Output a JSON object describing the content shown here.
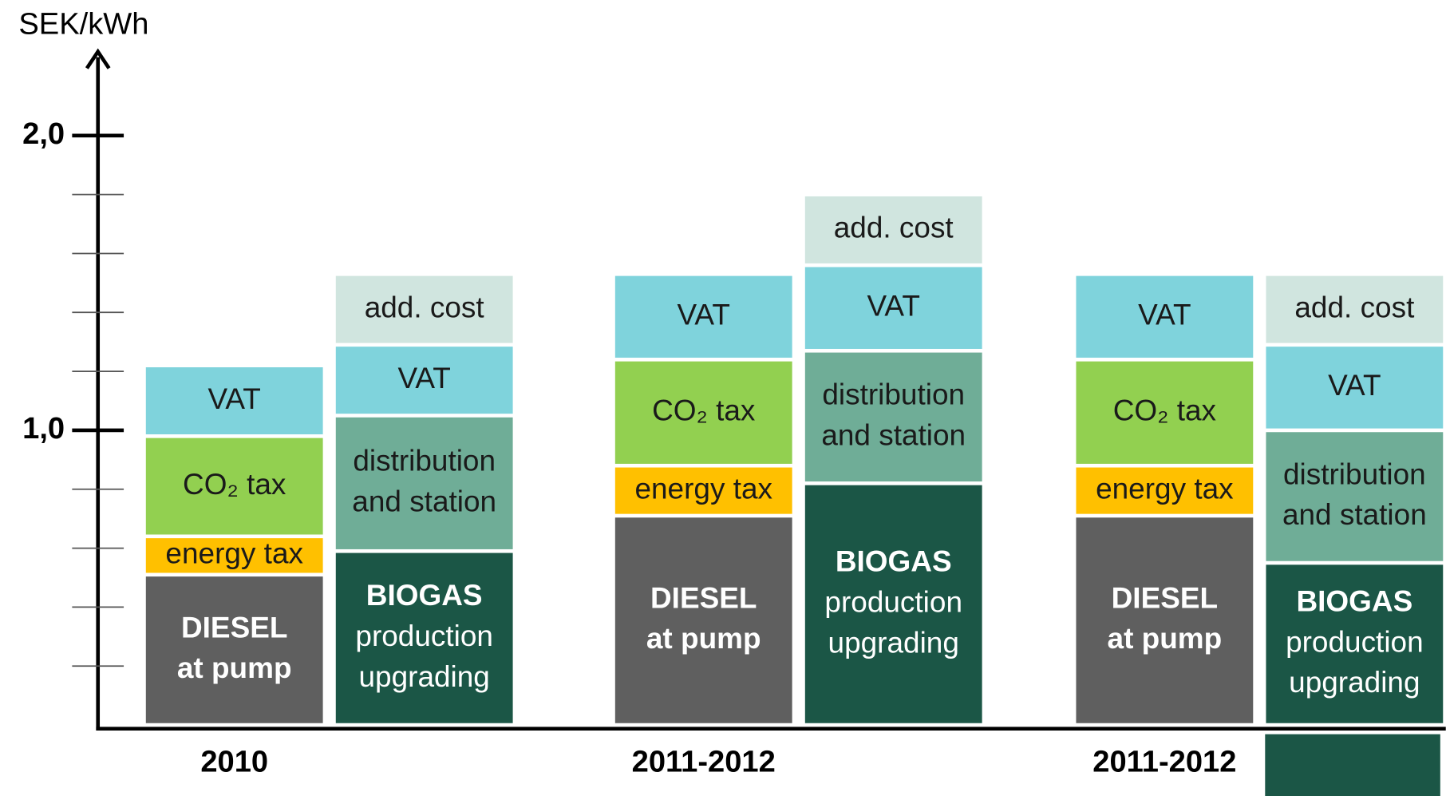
{
  "chart_data": {
    "type": "stacked_bar",
    "y_axis_label": "SEK/kWh",
    "ylim": [
      0,
      2.2
    ],
    "yticks": [
      {
        "value": 1,
        "label": "1,0"
      },
      {
        "value": 2,
        "label": "2,0"
      }
    ],
    "minor_yticks": [
      0.2,
      0.4,
      0.6,
      0.8,
      1.2,
      1.4,
      1.6,
      1.8
    ],
    "groups": [
      {
        "category": "2010",
        "bars": [
          {
            "segments": [
              {
                "label_lines": [
                  "DIESEL",
                  "at pump"
                ],
                "bold_lines": 2,
                "value": 0.51,
                "color": "#5f5f5f",
                "text_color": "#ffffff"
              },
              {
                "label_lines": [
                  "energy tax"
                ],
                "bold_lines": 0,
                "value": 0.13,
                "color": "#ffc000",
                "text_color": "#1a1a1a"
              },
              {
                "label_lines": [
                  "CO₂ tax"
                ],
                "bold_lines": 0,
                "value": 0.34,
                "color": "#92d050",
                "text_color": "#1a1a1a"
              },
              {
                "label_lines": [
                  "VAT"
                ],
                "bold_lines": 0,
                "value": 0.24,
                "color": "#7fd3dc",
                "text_color": "#1a1a1a"
              }
            ]
          },
          {
            "segments": [
              {
                "label_lines": [
                  "BIOGAS",
                  "production",
                  "upgrading"
                ],
                "bold_lines": 1,
                "value": 0.59,
                "color": "#1b5646",
                "text_color": "#ffffff"
              },
              {
                "label_lines": [
                  "distribution",
                  "and station"
                ],
                "bold_lines": 0,
                "value": 0.46,
                "color": "#6fad97",
                "text_color": "#1a1a1a"
              },
              {
                "label_lines": [
                  "VAT"
                ],
                "bold_lines": 0,
                "value": 0.24,
                "color": "#7fd3dc",
                "text_color": "#1a1a1a"
              },
              {
                "label_lines": [
                  "add. cost"
                ],
                "bold_lines": 0,
                "value": 0.24,
                "color": "#d0e5df",
                "text_color": "#1a1a1a"
              }
            ]
          }
        ]
      },
      {
        "category": "2011-2012",
        "bars": [
          {
            "segments": [
              {
                "label_lines": [
                  "DIESEL",
                  "at pump"
                ],
                "bold_lines": 2,
                "value": 0.71,
                "color": "#5f5f5f",
                "text_color": "#ffffff"
              },
              {
                "label_lines": [
                  "energy tax"
                ],
                "bold_lines": 0,
                "value": 0.17,
                "color": "#ffc000",
                "text_color": "#1a1a1a"
              },
              {
                "label_lines": [
                  "CO₂ tax"
                ],
                "bold_lines": 0,
                "value": 0.36,
                "color": "#92d050",
                "text_color": "#1a1a1a"
              },
              {
                "label_lines": [
                  "VAT"
                ],
                "bold_lines": 0,
                "value": 0.29,
                "color": "#7fd3dc",
                "text_color": "#1a1a1a"
              }
            ]
          },
          {
            "segments": [
              {
                "label_lines": [
                  "BIOGAS",
                  "production",
                  "upgrading"
                ],
                "bold_lines": 1,
                "value": 0.82,
                "color": "#1b5646",
                "text_color": "#ffffff"
              },
              {
                "label_lines": [
                  "distribution",
                  "and station"
                ],
                "bold_lines": 0,
                "value": 0.45,
                "color": "#6fad97",
                "text_color": "#1a1a1a"
              },
              {
                "label_lines": [
                  "VAT"
                ],
                "bold_lines": 0,
                "value": 0.29,
                "color": "#7fd3dc",
                "text_color": "#1a1a1a"
              },
              {
                "label_lines": [
                  "add. cost"
                ],
                "bold_lines": 0,
                "value": 0.24,
                "color": "#d0e5df",
                "text_color": "#1a1a1a"
              }
            ]
          }
        ]
      },
      {
        "category": "2011-2012",
        "bars": [
          {
            "segments": [
              {
                "label_lines": [
                  "DIESEL",
                  "at pump"
                ],
                "bold_lines": 2,
                "value": 0.71,
                "color": "#5f5f5f",
                "text_color": "#ffffff"
              },
              {
                "label_lines": [
                  "energy tax"
                ],
                "bold_lines": 0,
                "value": 0.17,
                "color": "#ffc000",
                "text_color": "#1a1a1a"
              },
              {
                "label_lines": [
                  "CO₂ tax"
                ],
                "bold_lines": 0,
                "value": 0.36,
                "color": "#92d050",
                "text_color": "#1a1a1a"
              },
              {
                "label_lines": [
                  "VAT"
                ],
                "bold_lines": 0,
                "value": 0.29,
                "color": "#7fd3dc",
                "text_color": "#1a1a1a"
              }
            ]
          },
          {
            "segments": [
              {
                "label_lines": [
                  "BIOGAS",
                  "production",
                  "upgrading"
                ],
                "bold_lines": 1,
                "value": 0.55,
                "color": "#1b5646",
                "text_color": "#ffffff"
              },
              {
                "label_lines": [
                  "distribution",
                  "and station"
                ],
                "bold_lines": 0,
                "value": 0.45,
                "color": "#6fad97",
                "text_color": "#1a1a1a"
              },
              {
                "label_lines": [
                  "VAT"
                ],
                "bold_lines": 0,
                "value": 0.29,
                "color": "#7fd3dc",
                "text_color": "#1a1a1a"
              },
              {
                "label_lines": [
                  "add. cost"
                ],
                "bold_lines": 0,
                "value": 0.24,
                "color": "#d0e5df",
                "text_color": "#1a1a1a"
              }
            ]
          }
        ]
      }
    ]
  }
}
